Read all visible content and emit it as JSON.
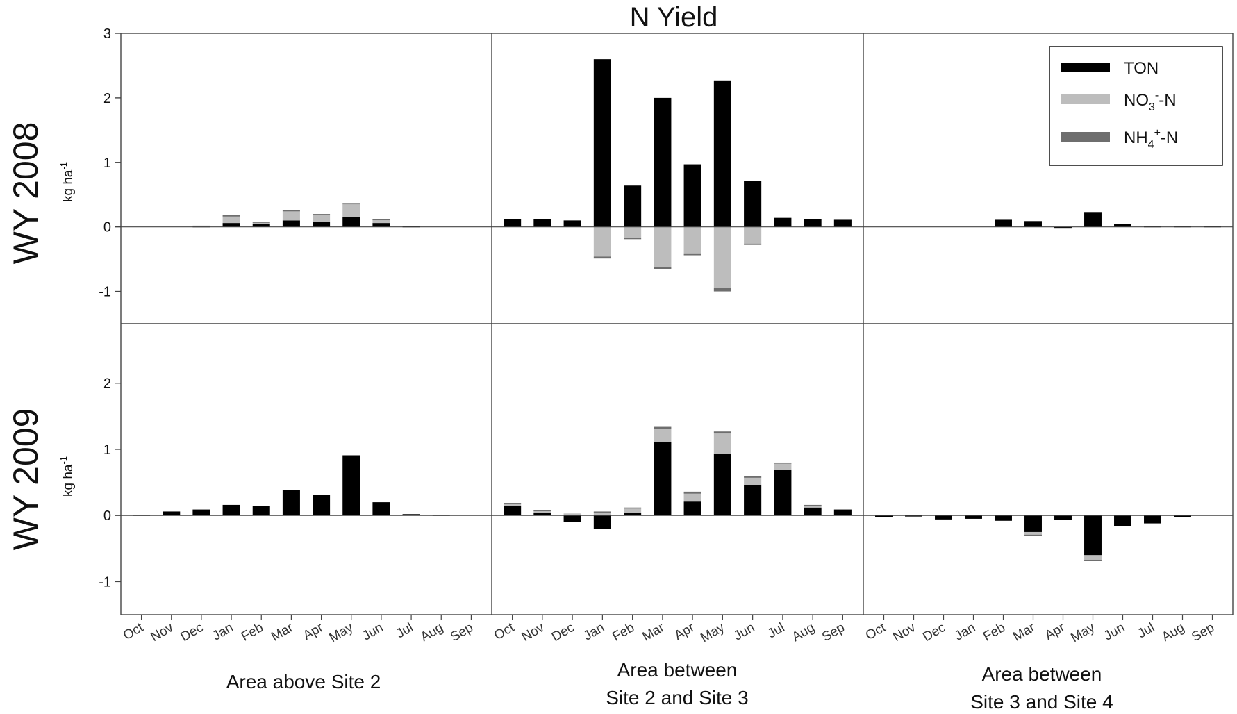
{
  "chart_data": {
    "type": "bar",
    "title": "N Yield",
    "months": [
      "Oct",
      "Nov",
      "Dec",
      "Jan",
      "Feb",
      "Mar",
      "Apr",
      "May",
      "Jun",
      "Jul",
      "Aug",
      "Sep"
    ],
    "group_labels": [
      [
        "Area above Site 2"
      ],
      [
        "Area between",
        "Site 2 and Site 3"
      ],
      [
        "Area between",
        "Site 3 and Site 4"
      ]
    ],
    "row_labels": [
      "WY 2008",
      "WY 2009"
    ],
    "ylabel_main": "kg ha",
    "ylabel_sup": "-1",
    "yticks_top": [
      "-1",
      "0",
      "1",
      "2",
      "3"
    ],
    "yticks_bottom": [
      "-1",
      "0",
      "1",
      "2"
    ],
    "ylim_top": [
      -1.5,
      3
    ],
    "ylim_bottom": [
      -1.5,
      2.9
    ],
    "legend": [
      {
        "label": "TON",
        "base": "TON",
        "sub": "",
        "sup": "",
        "tail": "",
        "color": "#000000"
      },
      {
        "label": "NO3--N",
        "base": "NO",
        "sub": "3",
        "sup": "-",
        "tail": "-N",
        "color": "#bdbdbd"
      },
      {
        "label": "NH4+-N",
        "base": "NH",
        "sub": "4",
        "sup": "+",
        "tail": "-N",
        "color": "#6e6e6e"
      }
    ],
    "colors": {
      "TON": "#000000",
      "NO3": "#bdbdbd",
      "NH4": "#6e6e6e"
    },
    "panels": [
      {
        "row": 0,
        "col": 0,
        "series": {
          "TON": [
            0.0,
            0.0,
            0.01,
            0.06,
            0.04,
            0.1,
            0.08,
            0.15,
            0.06,
            0.01,
            0.0,
            0.0
          ],
          "NO3": [
            0.0,
            0.0,
            0.01,
            0.1,
            0.03,
            0.14,
            0.1,
            0.2,
            0.05,
            0.0,
            0.0,
            0.0
          ],
          "NH4": [
            0.0,
            0.0,
            0.0,
            0.02,
            0.01,
            0.02,
            0.02,
            0.02,
            0.01,
            0.0,
            0.0,
            0.0
          ]
        }
      },
      {
        "row": 0,
        "col": 1,
        "series": {
          "TON": [
            0.12,
            0.12,
            0.1,
            2.6,
            0.64,
            2.0,
            0.97,
            2.27,
            0.71,
            0.14,
            0.12,
            0.11
          ],
          "NO3": [
            0.0,
            0.0,
            0.0,
            -0.46,
            -0.17,
            -0.62,
            -0.41,
            -0.95,
            -0.26,
            0.0,
            0.0,
            0.0
          ],
          "NH4": [
            0.0,
            0.0,
            0.0,
            -0.03,
            -0.02,
            -0.04,
            -0.03,
            -0.05,
            -0.02,
            0.0,
            0.0,
            0.0
          ]
        }
      },
      {
        "row": 0,
        "col": 2,
        "series": {
          "TON": [
            0.0,
            0.0,
            0.0,
            0.0,
            0.11,
            0.09,
            -0.01,
            0.23,
            0.05,
            0.01,
            0.01,
            0.01
          ],
          "NO3": [
            0.0,
            0.0,
            0.0,
            0.0,
            0.0,
            0.0,
            0.0,
            0.0,
            0.0,
            0.0,
            0.0,
            0.0
          ],
          "NH4": [
            0.0,
            0.0,
            0.0,
            0.0,
            0.0,
            0.0,
            0.0,
            0.0,
            0.0,
            0.0,
            0.0,
            0.0
          ]
        }
      },
      {
        "row": 1,
        "col": 0,
        "series": {
          "TON": [
            0.01,
            0.06,
            0.09,
            0.16,
            0.14,
            0.38,
            0.31,
            0.91,
            0.2,
            0.02,
            0.01,
            0.0
          ],
          "NO3": [
            0.0,
            0.0,
            0.0,
            0.0,
            0.0,
            0.0,
            0.0,
            0.0,
            0.0,
            0.0,
            0.0,
            0.0
          ],
          "NH4": [
            0.0,
            0.0,
            0.0,
            0.0,
            0.0,
            0.0,
            0.0,
            0.0,
            0.0,
            0.0,
            0.0,
            0.0
          ]
        }
      },
      {
        "row": 1,
        "col": 1,
        "series": {
          "TON": [
            0.14,
            0.04,
            -0.1,
            -0.2,
            0.04,
            1.11,
            0.21,
            0.93,
            0.46,
            0.69,
            0.12,
            0.09
          ],
          "NO3": [
            0.04,
            0.03,
            0.03,
            0.05,
            0.07,
            0.2,
            0.12,
            0.31,
            0.11,
            0.1,
            0.03,
            0.0
          ],
          "NH4": [
            0.01,
            0.01,
            0.0,
            0.01,
            0.01,
            0.03,
            0.03,
            0.03,
            0.02,
            0.01,
            0.01,
            0.0
          ]
        }
      },
      {
        "row": 1,
        "col": 2,
        "series": {
          "TON": [
            -0.02,
            -0.01,
            -0.06,
            -0.05,
            -0.08,
            -0.25,
            -0.07,
            -0.6,
            -0.16,
            -0.12,
            -0.02,
            0.0
          ],
          "NO3": [
            0.0,
            0.0,
            0.0,
            0.0,
            0.0,
            -0.04,
            0.0,
            -0.07,
            0.0,
            0.0,
            0.0,
            0.0
          ],
          "NH4": [
            0.0,
            0.0,
            0.0,
            0.0,
            0.0,
            -0.01,
            0.0,
            -0.01,
            0.0,
            0.0,
            0.0,
            0.0
          ]
        }
      }
    ]
  }
}
